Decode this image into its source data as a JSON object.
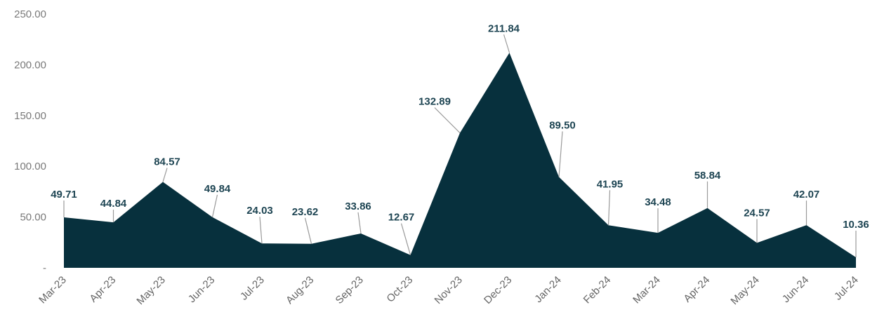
{
  "chart_data": {
    "type": "area",
    "categories": [
      "Mar-23",
      "Apr-23",
      "May-23",
      "Jun-23",
      "Jul-23",
      "Aug-23",
      "Sep-23",
      "Oct-23",
      "Nov-23",
      "Dec-23",
      "Jan-24",
      "Feb-24",
      "Mar-24",
      "Apr-24",
      "May-24",
      "Jun-24",
      "Jul-24"
    ],
    "values": [
      49.71,
      44.84,
      84.57,
      49.84,
      24.03,
      23.62,
      33.86,
      12.67,
      132.89,
      211.84,
      89.5,
      41.95,
      34.48,
      58.84,
      24.57,
      42.07,
      10.36
    ],
    "data_labels": [
      "49.71",
      "44.84",
      "84.57",
      "49.84",
      "24.03",
      "23.62",
      "33.86",
      "12.67",
      "132.89",
      "211.84",
      "89.50",
      "41.95",
      "34.48",
      "58.84",
      "24.57",
      "42.07",
      "10.36"
    ],
    "yticks": [
      0,
      50,
      100,
      150,
      200,
      250
    ],
    "ytick_labels": [
      "-",
      "50.00",
      "100.00",
      "150.00",
      "200.00",
      "250.00"
    ],
    "ylim": [
      0,
      250
    ],
    "title": "",
    "xlabel": "",
    "ylabel": "",
    "grid": false,
    "legend": "none",
    "fill_color": "#07303d",
    "label_color": "#1e4553"
  }
}
